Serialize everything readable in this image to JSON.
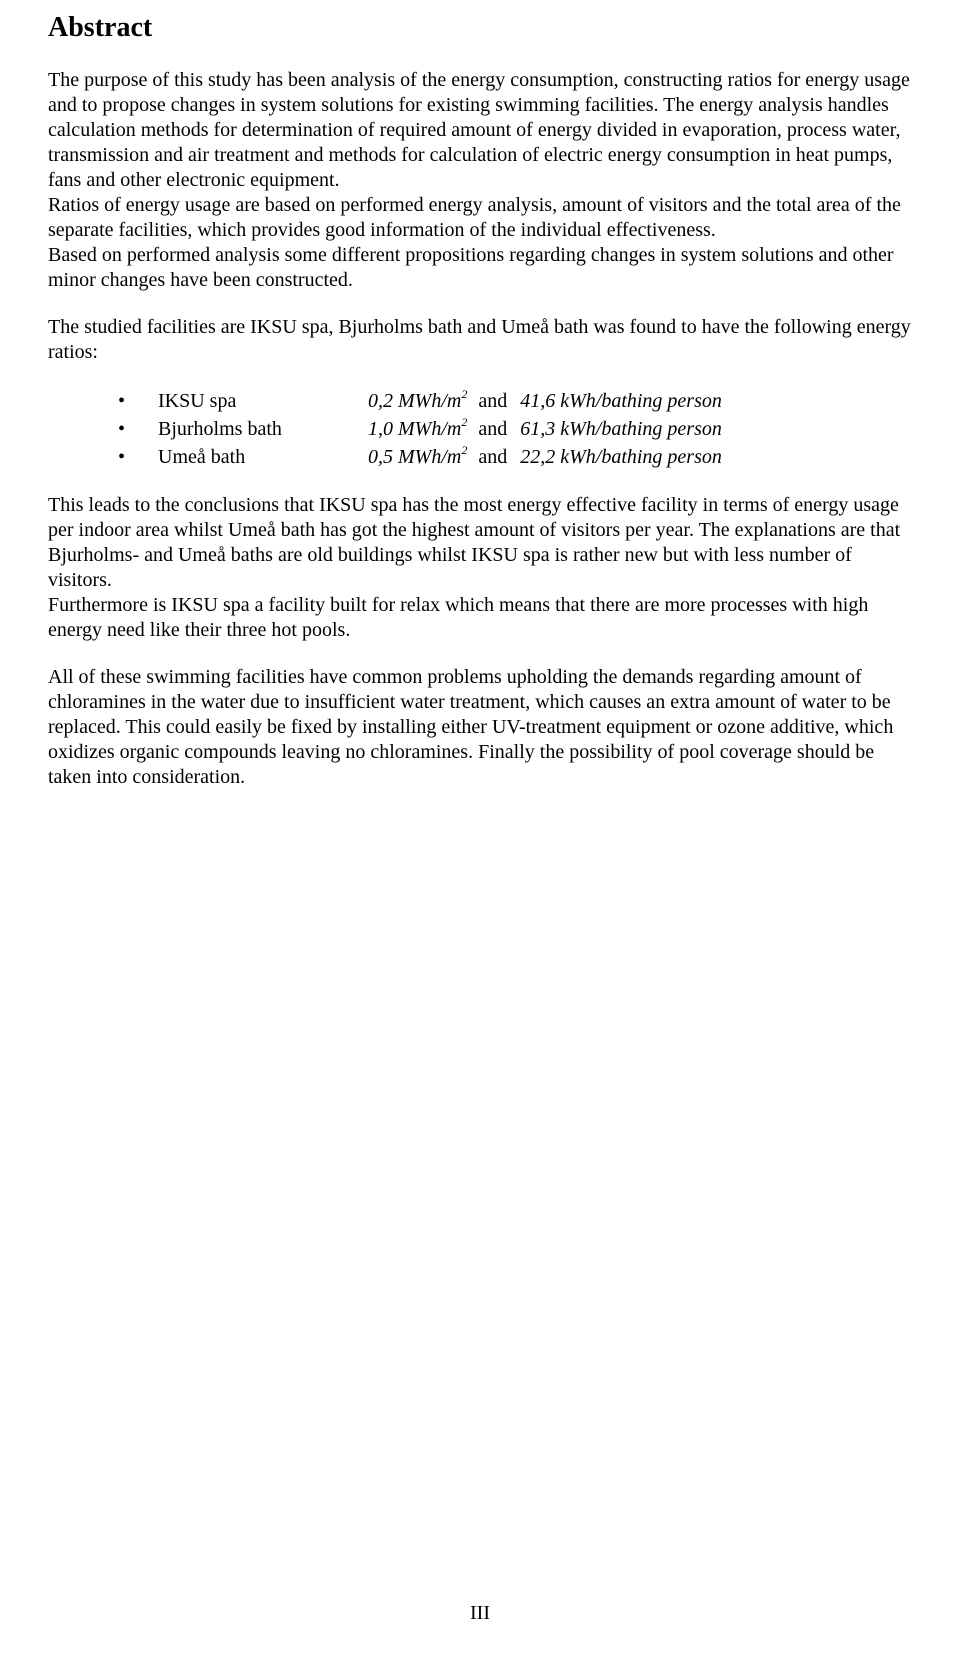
{
  "title": "Abstract",
  "para1": "The purpose of this study has been analysis of the energy consumption, constructing ratios for energy usage and to propose changes in system solutions for existing swimming facilities. The energy analysis handles calculation methods for determination of required amount of energy divided in evaporation, process water, transmission and air treatment and methods for calculation of electric energy consumption in heat pumps, fans and other electronic equipment.",
  "para1b": "Ratios of energy usage are based on performed energy analysis, amount of visitors and the total area of the separate facilities, which provides good information of the individual effectiveness.",
  "para1c": "Based on performed analysis some different propositions regarding changes in system solutions and other minor changes have been constructed.",
  "para2": "The studied facilities are IKSU spa, Bjurholms bath and Umeå bath was found to have the following energy ratios:",
  "bullets": [
    {
      "name": "IKSU spa",
      "area": "0,2 MWh/m",
      "sup": "2",
      "and": "and",
      "per": "41,6 kWh/bathing person"
    },
    {
      "name": "Bjurholms bath",
      "area": "1,0 MWh/m",
      "sup": "2",
      "and": "and",
      "per": "61,3 kWh/bathing person"
    },
    {
      "name": "Umeå bath",
      "area": "0,5 MWh/m",
      "sup": "2",
      "and": "and",
      "per": "22,2 kWh/bathing person"
    }
  ],
  "para3": "This leads to the conclusions that IKSU spa has the most energy effective facility in terms of energy usage per indoor area whilst Umeå bath has got the highest amount of visitors per year. The explanations are that Bjurholms- and Umeå baths are old buildings whilst IKSU spa is rather new but with less number of visitors.",
  "para3b": "Furthermore is IKSU spa a facility built for relax which means that there are more processes with high energy need like their three hot pools.",
  "para4": "All of these swimming facilities have common problems upholding the demands regarding amount of chloramines in the water due to insufficient water treatment, which causes an extra amount of water to be replaced. This could easily be fixed by installing either UV-treatment equipment or ozone additive, which oxidizes organic compounds leaving no chloramines. Finally the possibility of pool coverage should be taken into consideration.",
  "footer": "III",
  "colors": {
    "text": "#000000",
    "background": "#ffffff"
  },
  "font": {
    "family": "Times New Roman",
    "title_size_pt": 21,
    "body_size_pt": 15
  }
}
